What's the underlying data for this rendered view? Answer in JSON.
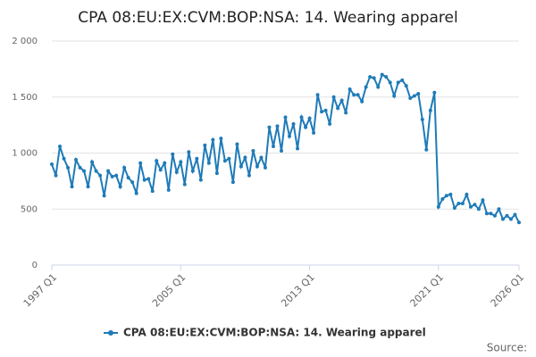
{
  "chart_data": {
    "type": "line",
    "title": "CPA 08:EU:EX:CVM:BOP:NSA: 14. Wearing apparel",
    "source": "Source:",
    "categories": [
      "1997 Q1",
      null,
      null,
      null,
      null,
      null,
      null,
      null,
      null,
      null,
      null,
      null,
      null,
      null,
      null,
      null,
      null,
      null,
      null,
      null,
      null,
      null,
      null,
      null,
      null,
      null,
      null,
      null,
      null,
      null,
      null,
      null,
      "2005 Q1",
      null,
      null,
      null,
      null,
      null,
      null,
      null,
      null,
      null,
      null,
      null,
      null,
      null,
      null,
      null,
      null,
      null,
      null,
      null,
      null,
      null,
      null,
      null,
      null,
      null,
      null,
      null,
      null,
      null,
      null,
      null,
      "2013 Q1",
      null,
      null,
      null,
      null,
      null,
      null,
      null,
      null,
      null,
      null,
      null,
      null,
      null,
      null,
      null,
      null,
      null,
      null,
      null,
      null,
      null,
      null,
      null,
      null,
      null,
      null,
      null,
      null,
      null,
      null,
      null,
      "2021 Q1",
      null,
      null,
      null,
      null,
      null,
      null,
      null,
      null,
      null,
      null,
      null,
      null,
      null,
      null,
      null,
      null,
      null,
      null,
      null,
      "2026 Q1"
    ],
    "series": [
      {
        "name": "CPA 08:EU:EX:CVM:BOP:NSA: 14. Wearing apparel",
        "color": "#1f7bb8",
        "values": [
          900,
          800,
          1060,
          950,
          870,
          700,
          940,
          870,
          840,
          700,
          920,
          840,
          800,
          620,
          840,
          790,
          800,
          700,
          870,
          780,
          740,
          640,
          910,
          760,
          770,
          660,
          930,
          850,
          910,
          670,
          990,
          830,
          920,
          720,
          1010,
          840,
          950,
          760,
          1070,
          910,
          1120,
          820,
          1130,
          930,
          950,
          740,
          1080,
          880,
          960,
          800,
          1020,
          880,
          960,
          870,
          1230,
          1060,
          1240,
          1020,
          1320,
          1150,
          1260,
          1040,
          1320,
          1230,
          1310,
          1180,
          1520,
          1370,
          1380,
          1260,
          1500,
          1400,
          1470,
          1360,
          1570,
          1520,
          1520,
          1460,
          1590,
          1680,
          1670,
          1590,
          1700,
          1680,
          1630,
          1510,
          1630,
          1650,
          1600,
          1490,
          1510,
          1530,
          1300,
          1030,
          1380,
          1540,
          520,
          590,
          620,
          630,
          510,
          550,
          550,
          630,
          520,
          540,
          500,
          580,
          460,
          460,
          440,
          500,
          410,
          440,
          410,
          450,
          380
        ]
      }
    ],
    "ylim": [
      0,
      2000
    ],
    "yticks": [
      0,
      500,
      {
        "value": 1000,
        "label": "1 000"
      },
      {
        "value": 1500,
        "label": "1 500"
      },
      {
        "value": 2000,
        "label": "2 000"
      }
    ],
    "grid": true
  }
}
